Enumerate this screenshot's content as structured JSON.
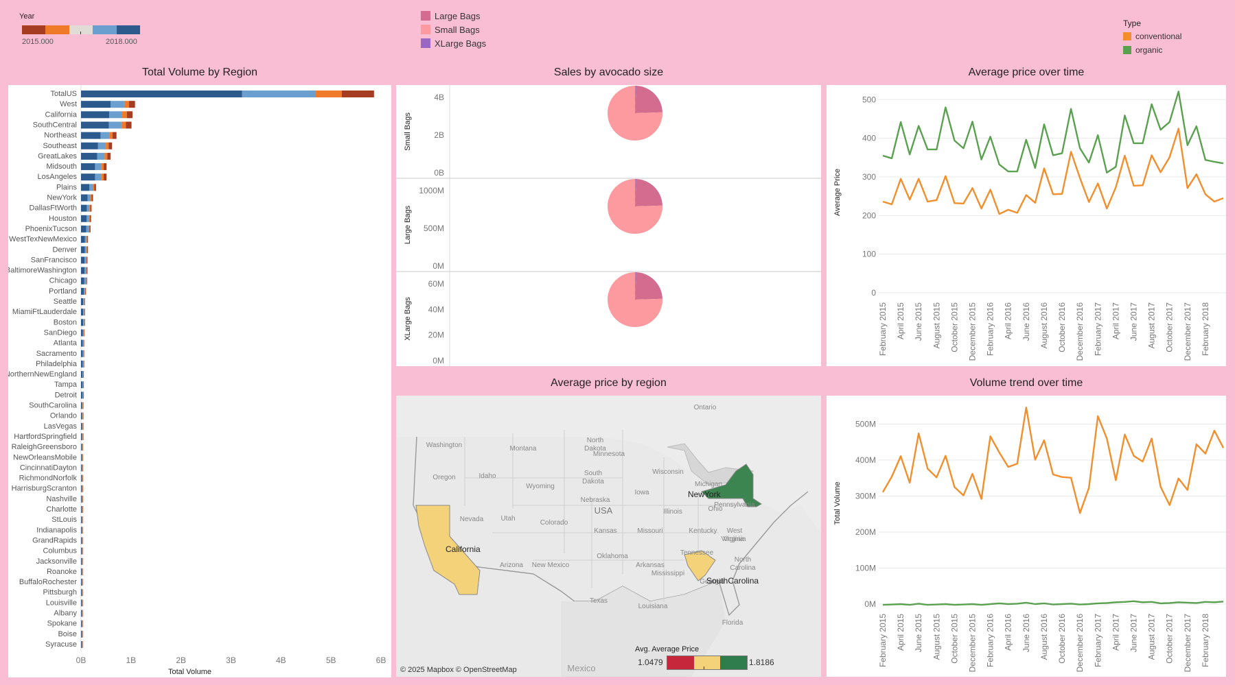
{
  "year_filter": {
    "label": "Year",
    "min": "2015.000",
    "max": "2018.000",
    "colors": [
      "#a63c22",
      "#ef7a2a",
      "#e1dcd6",
      "#6a9fcf",
      "#2d5a8c"
    ]
  },
  "size_legend": {
    "items": [
      {
        "label": "Large Bags",
        "color": "#d46c8f"
      },
      {
        "label": "Small Bags",
        "color": "#fd9a9f"
      },
      {
        "label": "XLarge Bags",
        "color": "#9a68c4"
      }
    ]
  },
  "type_legend": {
    "title": "Type",
    "items": [
      {
        "label": "conventional",
        "color": "#f28e2b"
      },
      {
        "label": "organic",
        "color": "#59a14f"
      }
    ]
  },
  "panels": {
    "region": "Total Volume by Region",
    "size": "Sales by avocado size",
    "price_time": "Average price over time",
    "map": "Average price by region",
    "volume_time": "Volume trend over time"
  },
  "chart_data": [
    {
      "type": "bar",
      "title": "Total Volume by Region",
      "xlabel": "Total Volume",
      "xticks": [
        "0B",
        "1B",
        "2B",
        "3B",
        "4B",
        "5B",
        "6B"
      ],
      "xlim": [
        0,
        6
      ],
      "series_years": [
        "2015",
        "2016",
        "2017",
        "2018"
      ],
      "categories": [
        "TotalUS",
        "West",
        "California",
        "SouthCentral",
        "Northeast",
        "Southeast",
        "GreatLakes",
        "Midsouth",
        "LosAngeles",
        "Plains",
        "NewYork",
        "DallasFtWorth",
        "Houston",
        "PhoenixTucson",
        "WestTexNewMexico",
        "Denver",
        "SanFrancisco",
        "BaltimoreWashington",
        "Chicago",
        "Portland",
        "Seattle",
        "MiamiFtLauderdale",
        "Boston",
        "SanDiego",
        "Atlanta",
        "Sacramento",
        "Philadelphia",
        "NorthernNewEngland",
        "Tampa",
        "Detroit",
        "SouthCarolina",
        "Orlando",
        "LasVegas",
        "HartfordSpringfield",
        "RaleighGreensboro",
        "NewOrleansMobile",
        "CincinnatiDayton",
        "RichmondNorfolk",
        "HarrisburgScranton",
        "Nashville",
        "Charlotte",
        "StLouis",
        "Indianapolis",
        "GrandRapids",
        "Columbus",
        "Jacksonville",
        "Roanoke",
        "BuffaloRochester",
        "Pittsburgh",
        "Louisville",
        "Albany",
        "Spokane",
        "Boise",
        "Syracuse"
      ],
      "totals": [
        5.86,
        1.08,
        1.03,
        1.01,
        0.71,
        0.62,
        0.59,
        0.51,
        0.51,
        0.3,
        0.24,
        0.21,
        0.2,
        0.19,
        0.14,
        0.14,
        0.13,
        0.13,
        0.12,
        0.1,
        0.08,
        0.08,
        0.08,
        0.07,
        0.06,
        0.06,
        0.06,
        0.05,
        0.05,
        0.05,
        0.04,
        0.04,
        0.04,
        0.04,
        0.03,
        0.03,
        0.03,
        0.03,
        0.03,
        0.03,
        0.03,
        0.02,
        0.02,
        0.02,
        0.02,
        0.02,
        0.02,
        0.02,
        0.02,
        0.01,
        0.01,
        0.01,
        0.01,
        0.01
      ],
      "year_shares": [
        0.55,
        0.25,
        0.09,
        0.11
      ]
    },
    {
      "type": "pie",
      "title": "Sales by avocado size",
      "rows": [
        {
          "axis_label": "Small Bags",
          "ticks": [
            "4B",
            "2B",
            "0B"
          ],
          "tick_values": [
            4,
            2,
            0
          ]
        },
        {
          "axis_label": "Large Bags",
          "ticks": [
            "1000M",
            "500M",
            "0M"
          ],
          "tick_values": [
            1000,
            500,
            0
          ]
        },
        {
          "axis_label": "XLarge Bags",
          "ticks": [
            "60M",
            "40M",
            "20M",
            "0M"
          ],
          "tick_values": [
            60,
            40,
            20,
            0
          ]
        }
      ],
      "slices": [
        {
          "name": "Large Bags",
          "value": 0.237
        },
        {
          "name": "Small Bags",
          "value": 0.756
        },
        {
          "name": "XLarge Bags",
          "value": 0.007
        }
      ]
    },
    {
      "type": "line",
      "title": "Average price over time",
      "ylabel": "Average Price",
      "ylim": [
        0,
        520
      ],
      "yticks": [
        0,
        100,
        200,
        300,
        400,
        500
      ],
      "xticklabels": [
        "February 2015",
        "April 2015",
        "June 2015",
        "August 2015",
        "October 2015",
        "December 2015",
        "February 2016",
        "April 2016",
        "June 2016",
        "August 2016",
        "October 2016",
        "December 2016",
        "February 2017",
        "April 2017",
        "June 2017",
        "August 2017",
        "October 2017",
        "December 2017",
        "February 2018"
      ],
      "series": [
        {
          "name": "conventional",
          "values": [
            236,
            229,
            295,
            241,
            295,
            236,
            240,
            302,
            232,
            231,
            271,
            218,
            267,
            204,
            215,
            207,
            253,
            233,
            322,
            255,
            256,
            365,
            297,
            235,
            283,
            218,
            273,
            355,
            277,
            278,
            356,
            312,
            351,
            425,
            271,
            307,
            255,
            236,
            245
          ]
        },
        {
          "name": "organic",
          "values": [
            355,
            348,
            442,
            358,
            432,
            371,
            371,
            480,
            394,
            374,
            443,
            345,
            404,
            332,
            314,
            314,
            396,
            323,
            436,
            356,
            361,
            476,
            374,
            337,
            408,
            311,
            326,
            459,
            387,
            387,
            488,
            422,
            442,
            521,
            382,
            431,
            344,
            339,
            335
          ]
        }
      ]
    },
    {
      "type": "line",
      "title": "Volume trend over time",
      "ylabel": "Total Volume",
      "ylim": [
        0,
        560
      ],
      "yticks": [
        "0M",
        "100M",
        "200M",
        "300M",
        "400M",
        "500M"
      ],
      "ytick_values": [
        0,
        100,
        200,
        300,
        400,
        500
      ],
      "xticklabels": [
        "February 2015",
        "April 2015",
        "June 2015",
        "August 2015",
        "October 2015",
        "December 2015",
        "February 2016",
        "April 2016",
        "June 2016",
        "August 2016",
        "October 2016",
        "December 2016",
        "February 2017",
        "April 2017",
        "June 2017",
        "August 2017",
        "October 2017",
        "December 2017",
        "February 2018"
      ],
      "series": [
        {
          "name": "conventional",
          "values": [
            311,
            354,
            411,
            337,
            474,
            376,
            352,
            412,
            325,
            302,
            362,
            292,
            466,
            421,
            381,
            390,
            546,
            401,
            455,
            360,
            353,
            351,
            253,
            323,
            522,
            460,
            344,
            471,
            412,
            396,
            460,
            326,
            275,
            349,
            317,
            444,
            418,
            482,
            434
          ]
        },
        {
          "name": "organic",
          "values": [
            -2,
            -1,
            0,
            -2,
            1,
            -2,
            -1,
            0,
            -2,
            -1,
            0,
            -2,
            0,
            2,
            0,
            1,
            4,
            0,
            2,
            -1,
            0,
            1,
            -1,
            0,
            2,
            3,
            5,
            6,
            8,
            5,
            6,
            2,
            3,
            5,
            4,
            3,
            6,
            5,
            7
          ]
        }
      ]
    }
  ],
  "map": {
    "title": "Average price by region",
    "credit": "© 2025 Mapbox © OpenStreetMap",
    "legend_title": "Avg. Average Price",
    "legend_min": "1.0479",
    "legend_max": "1.8186",
    "legend_colors": [
      "#c7273b",
      "#f3d279",
      "#2f7d4c"
    ],
    "highlighted": [
      {
        "label": "California",
        "color": "#f3d279"
      },
      {
        "label": "SouthCarolina",
        "color": "#f3d279"
      },
      {
        "label": "NewYork",
        "color": "#3d8550"
      }
    ],
    "place_labels": [
      "Ontario",
      "Washington",
      "Montana",
      "North Dakota",
      "Minnesota",
      "Oregon",
      "Idaho",
      "South Dakota",
      "Wisconsin",
      "Wyoming",
      "Michigan",
      "Iowa",
      "Nebraska",
      "USA",
      "Nevada",
      "Utah",
      "Illinois",
      "Ohio",
      "Pennsylvania",
      "Colorado",
      "Kansas",
      "Missouri",
      "Kentucky",
      "West Virginia",
      "Virginia",
      "Oklahoma",
      "Tennessee",
      "North Carolina",
      "Arizona",
      "New Mexico",
      "Arkansas",
      "Mississippi",
      "Georgia",
      "Texas",
      "Louisiana",
      "Florida",
      "Mexico"
    ]
  }
}
